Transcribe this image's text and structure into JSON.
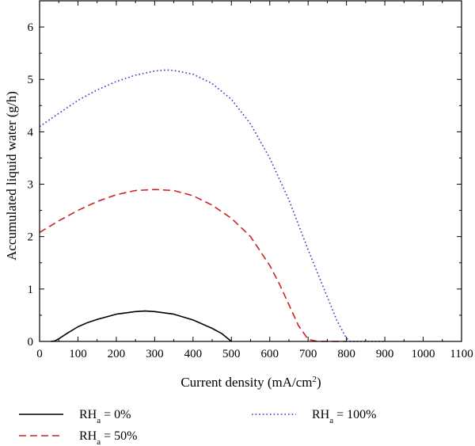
{
  "chart_data": {
    "type": "line",
    "title": "",
    "xlabel": "Current density (mA/cm",
    "xlabel_sup": "2",
    "xlabel_close": ")",
    "ylabel": "Accumulated liquid water (g/h)",
    "xlim": [
      0,
      1100
    ],
    "ylim": [
      0,
      6.5
    ],
    "xticks": [
      0,
      100,
      200,
      300,
      400,
      500,
      600,
      700,
      800,
      900,
      1000,
      1100
    ],
    "yticks": [
      0,
      1,
      2,
      3,
      4,
      5,
      6
    ],
    "grid": false,
    "legend_position": "bottom",
    "series": [
      {
        "name": "RH",
        "name_sub": "a",
        "name_suffix": " = 0%",
        "color": "#000000",
        "dash": "solid",
        "x": [
          30,
          40,
          50,
          75,
          100,
          125,
          150,
          200,
          250,
          275,
          300,
          350,
          400,
          450,
          475,
          490,
          500
        ],
        "y": [
          0,
          0.01,
          0.05,
          0.17,
          0.28,
          0.36,
          0.42,
          0.52,
          0.57,
          0.58,
          0.57,
          0.52,
          0.41,
          0.25,
          0.15,
          0.06,
          0
        ]
      },
      {
        "name": "RH",
        "name_sub": "a",
        "name_suffix": " = 50%",
        "color": "#cc2222",
        "dash": "dashed",
        "x": [
          0,
          50,
          100,
          150,
          200,
          250,
          300,
          350,
          400,
          450,
          500,
          550,
          600,
          625,
          650,
          675,
          700,
          725,
          750,
          800
        ],
        "y": [
          2.08,
          2.3,
          2.5,
          2.67,
          2.8,
          2.88,
          2.9,
          2.88,
          2.78,
          2.6,
          2.35,
          2.0,
          1.45,
          1.1,
          0.7,
          0.3,
          0.04,
          0,
          0,
          0
        ]
      },
      {
        "name": "RH",
        "name_sub": "a",
        "name_suffix": " = 100%",
        "color": "#3333cc",
        "dash": "dotted",
        "x": [
          0,
          50,
          100,
          150,
          200,
          250,
          300,
          330,
          350,
          400,
          450,
          500,
          550,
          600,
          650,
          700,
          750,
          775,
          800,
          810,
          850,
          900
        ],
        "y": [
          4.1,
          4.35,
          4.6,
          4.8,
          4.96,
          5.08,
          5.16,
          5.18,
          5.17,
          5.1,
          4.92,
          4.62,
          4.15,
          3.5,
          2.7,
          1.75,
          0.85,
          0.4,
          0.06,
          0,
          0,
          0
        ]
      }
    ]
  }
}
